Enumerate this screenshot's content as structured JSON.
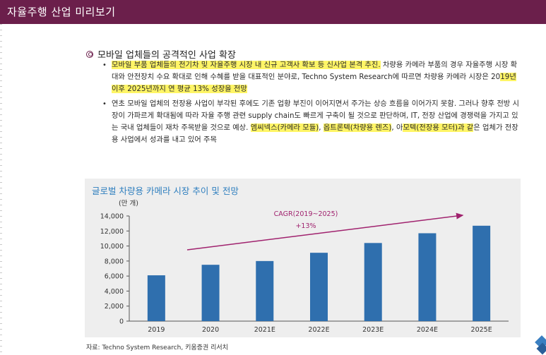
{
  "header": {
    "title": "자율주행 산업 미리보기"
  },
  "section": {
    "heading": "모바일 업체들의 공격적인 사업 확장",
    "bullet1": {
      "hl1": "모바일 부품 업체들의 전기차 및 자율주행 시장 내 신규 고객사 확보 등 신사업 본격 추진.",
      "text1": " 차량용 카메라 부품의 경우 자율주행 시장 확대와 안전장치 수요 확대로 인해 수혜를 받을 대표적인 분야로, Techno System Research에 따르면 차량용 카메라 시장은 20",
      "hl2": "19년 이후 2025년까지 연 평균 13% 성장을 전망",
      "text2": ""
    },
    "bullet2": {
      "text1": "연초 모바일 업체의 전장용 사업이 부각된 후에도 기존 업황 부진이 이어지면서 주가는 상승 흐름을 이어가지 못함. 그러나 향후 전방 시장이 가파르게 확대됨에 따라 자율 주행 관련 supply chain도 빠르게 구축이 될 것으로 판단하며, IT, 전장 산업에 경쟁력을 가지고 있는 국내 업체들이 재차 주목받을 것으로 예상. ",
      "hl1": "엠씨넥스(카메라 모듈)",
      "text2": ", ",
      "hl2": "옵트론텍(차량용 렌즈)",
      "text3": ", 아",
      "hl3": "모텍(전장용 모터)과 같",
      "text4": "은 업체가 전장용 사업에서 성과를 내고 있어 주목"
    }
  },
  "chart_data": {
    "type": "bar",
    "title": "글로벌 차량용 카메라 시장 추이 및 전망",
    "unit_label": "(만 개)",
    "categories": [
      "2019",
      "2020",
      "2021E",
      "2022E",
      "2023E",
      "2024E",
      "2025E"
    ],
    "values": [
      6100,
      7500,
      8000,
      9100,
      10400,
      11700,
      12700
    ],
    "ylim": [
      0,
      14000
    ],
    "yticks": [
      0,
      2000,
      4000,
      6000,
      8000,
      10000,
      12000,
      14000
    ],
    "ytick_labels": [
      "0",
      "2,000",
      "4,000",
      "6,000",
      "8,000",
      "10,000",
      "12,000",
      "14,000"
    ],
    "annotation_line1": "CAGR(2019~2025)",
    "annotation_line2": "+13%",
    "bar_color": "#2f6fae",
    "arrow_color": "#a0226e"
  },
  "source": "자료: Techno System Research, 키움증권 리서치"
}
